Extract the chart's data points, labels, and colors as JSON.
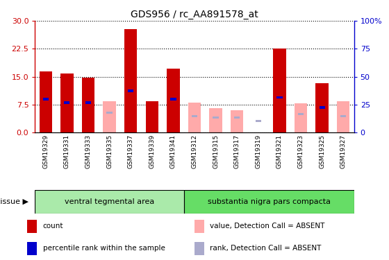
{
  "title": "GDS956 / rc_AA891578_at",
  "categories": [
    "GSM19329",
    "GSM19331",
    "GSM19333",
    "GSM19335",
    "GSM19337",
    "GSM19339",
    "GSM19341",
    "GSM19312",
    "GSM19315",
    "GSM19317",
    "GSM19319",
    "GSM19321",
    "GSM19323",
    "GSM19325",
    "GSM19327"
  ],
  "red_values": [
    16.5,
    15.8,
    14.7,
    0,
    27.8,
    8.5,
    17.2,
    0,
    0,
    0,
    0,
    22.5,
    0,
    13.3,
    0
  ],
  "blue_values": [
    30.0,
    27.0,
    27.0,
    0,
    37.5,
    0,
    30.0,
    0,
    0,
    0,
    0,
    31.5,
    0,
    22.5,
    0
  ],
  "pink_values": [
    0,
    0,
    0,
    8.5,
    0,
    0,
    0,
    8.0,
    6.5,
    6.0,
    0,
    0,
    7.8,
    0,
    8.5
  ],
  "lavender_values": [
    0,
    0,
    0,
    18.0,
    0,
    0,
    0,
    15.0,
    13.5,
    13.5,
    10.5,
    0,
    16.5,
    0,
    15.0
  ],
  "group1_label": "ventral tegmental area",
  "group2_label": "substantia nigra pars compacta",
  "group1_count": 7,
  "group2_count": 8,
  "ylim_left": [
    0,
    30
  ],
  "ylim_right": [
    0,
    100
  ],
  "yticks_left": [
    0,
    7.5,
    15,
    22.5,
    30
  ],
  "yticks_right": [
    0,
    25,
    50,
    75,
    100
  ],
  "left_tick_color": "#cc0000",
  "right_tick_color": "#0000cc",
  "bar_width": 0.6,
  "red_color": "#cc0000",
  "blue_color": "#0000cc",
  "pink_color": "#ffaaaa",
  "lavender_color": "#aaaacc",
  "bg_plot": "#ffffff",
  "bg_xticklabel": "#d8d8d8",
  "bg_group1": "#aaeaaa",
  "bg_group2": "#66dd66",
  "legend_items": [
    "count",
    "percentile rank within the sample",
    "value, Detection Call = ABSENT",
    "rank, Detection Call = ABSENT"
  ],
  "legend_colors": [
    "#cc0000",
    "#0000cc",
    "#ffaaaa",
    "#aaaacc"
  ]
}
